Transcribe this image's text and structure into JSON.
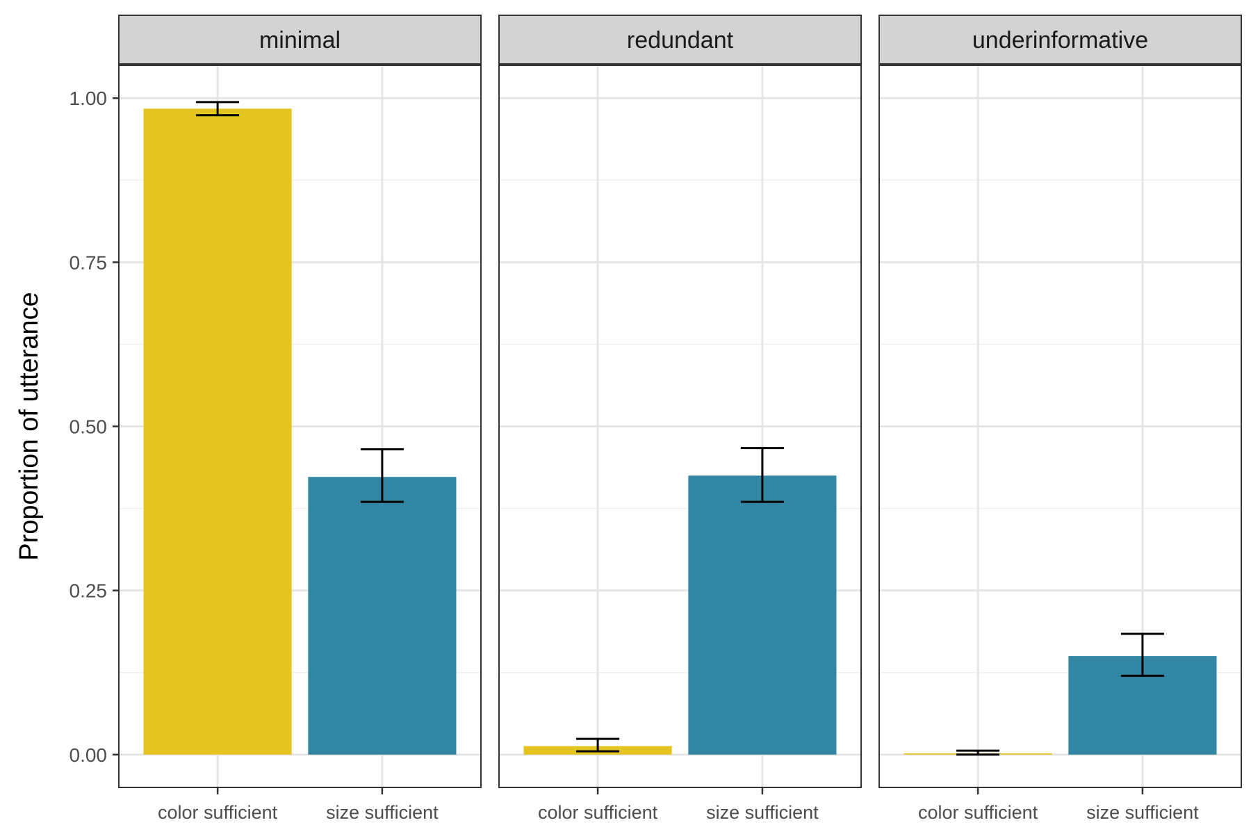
{
  "chart_data": {
    "type": "bar",
    "ylabel": "Proportion of utterance",
    "xlabel": "",
    "ylim": [
      -0.05,
      1.05
    ],
    "y_ticks": [
      0.0,
      0.25,
      0.5,
      0.75,
      1.0
    ],
    "y_tick_labels": [
      "0.00",
      "0.25",
      "0.50",
      "0.75",
      "1.00"
    ],
    "grid": true,
    "legend": "none",
    "categories": [
      "color sufficient",
      "size sufficient"
    ],
    "category_colors": [
      "#E4C421",
      "#3288A4"
    ],
    "panels": [
      {
        "title": "minimal",
        "values": [
          0.984,
          0.423
        ],
        "error_low": [
          0.974,
          0.385
        ],
        "error_high": [
          0.994,
          0.465
        ]
      },
      {
        "title": "redundant",
        "values": [
          0.013,
          0.425
        ],
        "error_low": [
          0.005,
          0.385
        ],
        "error_high": [
          0.024,
          0.467
        ]
      },
      {
        "title": "underinformative",
        "values": [
          0.002,
          0.15
        ],
        "error_low": [
          0.0,
          0.12
        ],
        "error_high": [
          0.006,
          0.184
        ]
      }
    ]
  }
}
